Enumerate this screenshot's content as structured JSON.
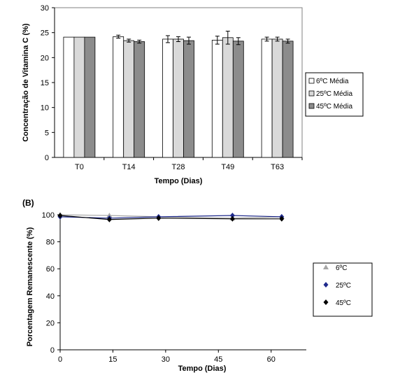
{
  "chart_data": [
    {
      "type": "bar",
      "title": "",
      "xlabel": "Tempo (Dias)",
      "ylabel": "Concentração de Vitamina C (%)",
      "ylim": [
        0,
        30
      ],
      "yticks": [
        "0",
        "5",
        "10",
        "15",
        "20",
        "25",
        "30"
      ],
      "categories": [
        "T0",
        "T14",
        "T28",
        "T49",
        "T63"
      ],
      "series": [
        {
          "name": "6ºC Média",
          "color": "#ffffff",
          "values": [
            24.1,
            24.2,
            23.7,
            23.5,
            23.7
          ],
          "errors": [
            0,
            0.3,
            0.7,
            0.8,
            0.4
          ]
        },
        {
          "name": "25ºC Média",
          "color": "#d9d9d9",
          "values": [
            24.1,
            23.4,
            23.7,
            24.0,
            23.7
          ],
          "errors": [
            0,
            0.3,
            0.5,
            1.3,
            0.4
          ]
        },
        {
          "name": "45ºC Média",
          "color": "#8c8c8c",
          "values": [
            24.1,
            23.2,
            23.4,
            23.3,
            23.3
          ],
          "errors": [
            0,
            0.3,
            0.7,
            0.7,
            0.4
          ]
        }
      ],
      "grid": false,
      "legend": "right"
    },
    {
      "type": "line",
      "panel_label": "(B)",
      "title": "",
      "xlabel": "Tempo (Dias)",
      "ylabel": "Porcentagem Remanescente (%)",
      "xlim": [
        0,
        70
      ],
      "ylim": [
        0,
        100
      ],
      "xticks": [
        "0",
        "15",
        "30",
        "45",
        "60"
      ],
      "yticks": [
        "0",
        "20",
        "40",
        "60",
        "80",
        "100"
      ],
      "series": [
        {
          "name": "6ºC",
          "color": "#a6a6a6",
          "marker": "triangle",
          "x": [
            0,
            14,
            28,
            49,
            63
          ],
          "y": [
            100,
            99.5,
            98.5,
            97.5,
            98.5
          ]
        },
        {
          "name": "25ºC",
          "color": "#1f2a8c",
          "marker": "diamond",
          "x": [
            0,
            14,
            28,
            49,
            63
          ],
          "y": [
            98.5,
            97.5,
            98.5,
            99.5,
            98.5
          ]
        },
        {
          "name": "45ºC",
          "color": "#000000",
          "marker": "diamond",
          "x": [
            0,
            14,
            28,
            49,
            63
          ],
          "y": [
            99.5,
            96.5,
            97.5,
            97.0,
            97.0
          ]
        }
      ],
      "grid": false,
      "legend": "right"
    }
  ]
}
